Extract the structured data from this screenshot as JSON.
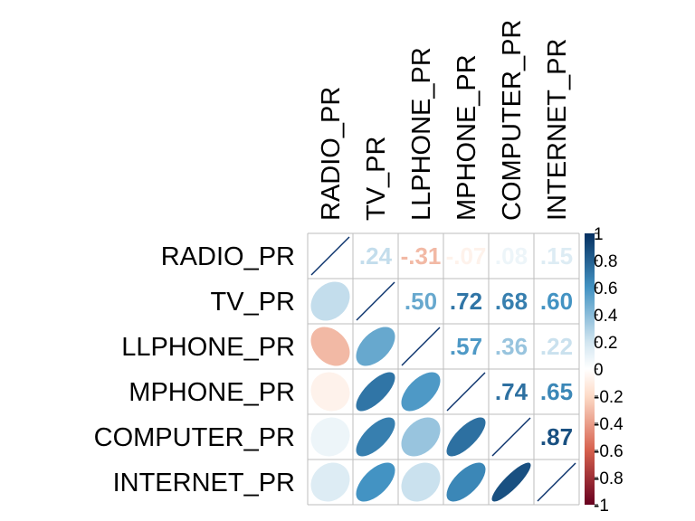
{
  "chart_data": {
    "type": "heatmap",
    "variables": [
      "RADIO_PR",
      "TV_PR",
      "LLPHONE_PR",
      "MPHONE_PR",
      "COMPUTER_PR",
      "INTERNET_PR"
    ],
    "correlation_matrix": [
      [
        1.0,
        0.24,
        -0.31,
        -0.07,
        0.08,
        0.15
      ],
      [
        0.24,
        1.0,
        0.5,
        0.72,
        0.68,
        0.6
      ],
      [
        -0.31,
        0.5,
        1.0,
        0.57,
        0.36,
        0.22
      ],
      [
        -0.07,
        0.72,
        0.57,
        1.0,
        0.74,
        0.65
      ],
      [
        0.08,
        0.68,
        0.36,
        0.74,
        1.0,
        0.87
      ],
      [
        0.15,
        0.6,
        0.22,
        0.65,
        0.87,
        1.0
      ]
    ],
    "upper_triangle": "number",
    "lower_triangle": "ellipse",
    "diagonal": "line",
    "colorbar": {
      "range": [
        -1,
        1
      ],
      "ticks": [
        1,
        0.8,
        0.6,
        0.4,
        0.2,
        0,
        -0.2,
        -0.4,
        -0.6,
        -0.8,
        -1
      ],
      "tick_labels": [
        "1",
        "0.8",
        "0.6",
        "0.4",
        "0.2",
        "0",
        "-0.2",
        "-0.4",
        "-0.6",
        "-0.8",
        "-1"
      ],
      "colors": {
        "neg_strong": "#67001F",
        "neg_mid": "#D6604D",
        "neg_light": "#FDDBC7",
        "zero": "#FFFFFF",
        "pos_light": "#D1E5F0",
        "pos_mid": "#4393C3",
        "pos_strong": "#053061"
      }
    },
    "grid_color": "#BEBEBE"
  }
}
